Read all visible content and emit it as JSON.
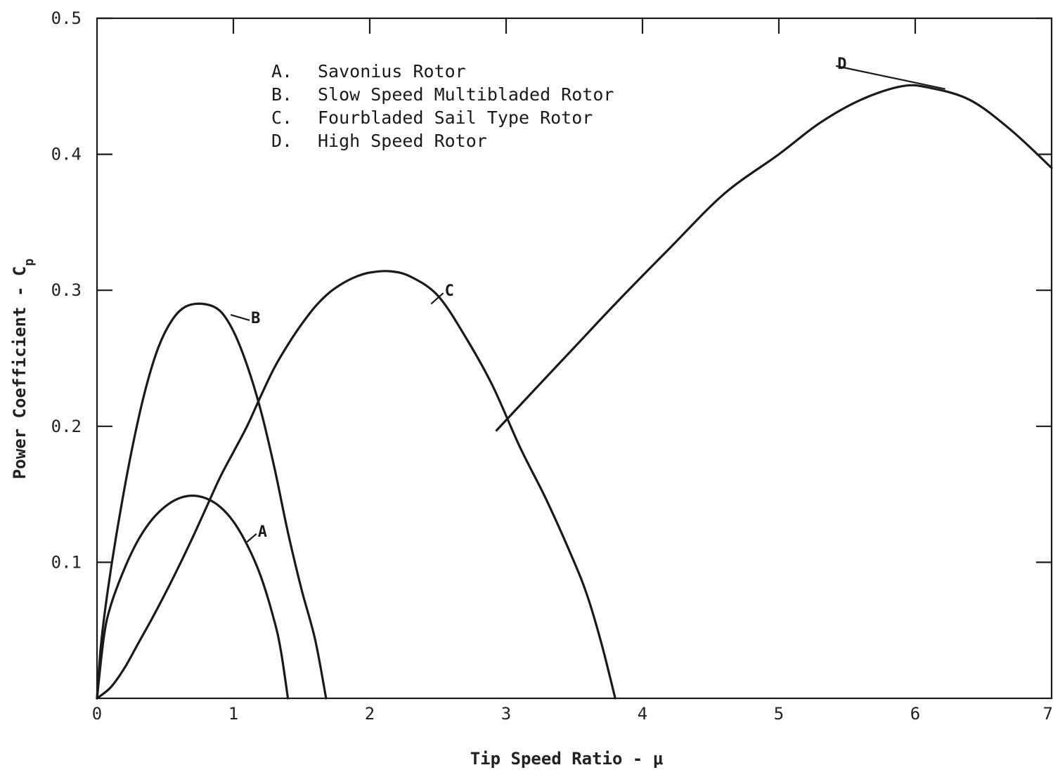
{
  "chart_data": {
    "type": "line",
    "xlabel": "Tip Speed Ratio - μ",
    "ylabel": "Power Coefficient - C",
    "ylabel_subscript": "p",
    "xlim": [
      0,
      7
    ],
    "ylim": [
      0,
      0.5
    ],
    "x_ticks": [
      0,
      1,
      2,
      3,
      4,
      5,
      6,
      7
    ],
    "x_tick_labels": [
      "0",
      "1",
      "2",
      "3",
      "4",
      "5",
      "6",
      "7"
    ],
    "y_ticks": [
      0.1,
      0.2,
      0.3,
      0.4,
      0.5
    ],
    "y_tick_labels": [
      "0.1",
      "0.2",
      "0.3",
      "0.4",
      "0.5"
    ],
    "grid": false,
    "legend_placement": "top-left",
    "legend": [
      {
        "key": "A.",
        "text": "Savonius Rotor"
      },
      {
        "key": "B.",
        "text": "Slow Speed Multibladed Rotor"
      },
      {
        "key": "C.",
        "text": "Fourbladed Sail Type Rotor"
      },
      {
        "key": "D.",
        "text": "High Speed Rotor"
      }
    ],
    "series": [
      {
        "name": "A",
        "label_point": [
          1.2,
          0.123
        ],
        "leader_start": [
          1.1,
          0.115
        ],
        "points": [
          [
            0,
            0
          ],
          [
            0.05,
            0.045
          ],
          [
            0.1,
            0.068
          ],
          [
            0.2,
            0.095
          ],
          [
            0.3,
            0.116
          ],
          [
            0.4,
            0.131
          ],
          [
            0.5,
            0.141
          ],
          [
            0.6,
            0.147
          ],
          [
            0.7,
            0.149
          ],
          [
            0.8,
            0.147
          ],
          [
            0.9,
            0.141
          ],
          [
            1.0,
            0.13
          ],
          [
            1.1,
            0.113
          ],
          [
            1.2,
            0.09
          ],
          [
            1.3,
            0.057
          ],
          [
            1.35,
            0.034
          ],
          [
            1.4,
            0.0
          ]
        ]
      },
      {
        "name": "B",
        "label_point": [
          1.15,
          0.28
        ],
        "leader_start": [
          0.98,
          0.282
        ],
        "points": [
          [
            0,
            0
          ],
          [
            0.03,
            0.04
          ],
          [
            0.08,
            0.08
          ],
          [
            0.15,
            0.125
          ],
          [
            0.25,
            0.18
          ],
          [
            0.35,
            0.225
          ],
          [
            0.45,
            0.258
          ],
          [
            0.55,
            0.278
          ],
          [
            0.65,
            0.288
          ],
          [
            0.78,
            0.29
          ],
          [
            0.9,
            0.285
          ],
          [
            1.0,
            0.27
          ],
          [
            1.1,
            0.245
          ],
          [
            1.2,
            0.212
          ],
          [
            1.3,
            0.17
          ],
          [
            1.4,
            0.122
          ],
          [
            1.5,
            0.08
          ],
          [
            1.6,
            0.043
          ],
          [
            1.68,
            0.0
          ]
        ]
      },
      {
        "name": "C",
        "label_point": [
          2.57,
          0.3
        ],
        "leader_start": [
          2.45,
          0.29
        ],
        "points": [
          [
            0,
            0
          ],
          [
            0.1,
            0.008
          ],
          [
            0.2,
            0.022
          ],
          [
            0.3,
            0.04
          ],
          [
            0.4,
            0.058
          ],
          [
            0.5,
            0.077
          ],
          [
            0.6,
            0.097
          ],
          [
            0.7,
            0.118
          ],
          [
            0.8,
            0.14
          ],
          [
            0.9,
            0.162
          ],
          [
            1.0,
            0.181
          ],
          [
            1.1,
            0.2
          ],
          [
            1.2,
            0.222
          ],
          [
            1.3,
            0.243
          ],
          [
            1.4,
            0.26
          ],
          [
            1.5,
            0.275
          ],
          [
            1.6,
            0.288
          ],
          [
            1.7,
            0.298
          ],
          [
            1.8,
            0.305
          ],
          [
            1.9,
            0.31
          ],
          [
            2.0,
            0.313
          ],
          [
            2.15,
            0.314
          ],
          [
            2.3,
            0.31
          ],
          [
            2.5,
            0.296
          ],
          [
            2.7,
            0.266
          ],
          [
            2.9,
            0.23
          ],
          [
            3.1,
            0.185
          ],
          [
            3.3,
            0.145
          ],
          [
            3.5,
            0.1
          ],
          [
            3.6,
            0.074
          ],
          [
            3.7,
            0.04
          ],
          [
            3.8,
            0.0
          ]
        ]
      },
      {
        "name": "D",
        "label_point": [
          5.45,
          0.467
        ],
        "leader_start": [
          6.22,
          0.448
        ],
        "points": [
          [
            2.93,
            0.197
          ],
          [
            3.2,
            0.226
          ],
          [
            3.5,
            0.258
          ],
          [
            3.8,
            0.29
          ],
          [
            4.2,
            0.331
          ],
          [
            4.6,
            0.371
          ],
          [
            5.0,
            0.4
          ],
          [
            5.3,
            0.423
          ],
          [
            5.6,
            0.44
          ],
          [
            5.9,
            0.45
          ],
          [
            6.1,
            0.449
          ],
          [
            6.4,
            0.44
          ],
          [
            6.7,
            0.418
          ],
          [
            7.0,
            0.39
          ]
        ]
      }
    ]
  }
}
